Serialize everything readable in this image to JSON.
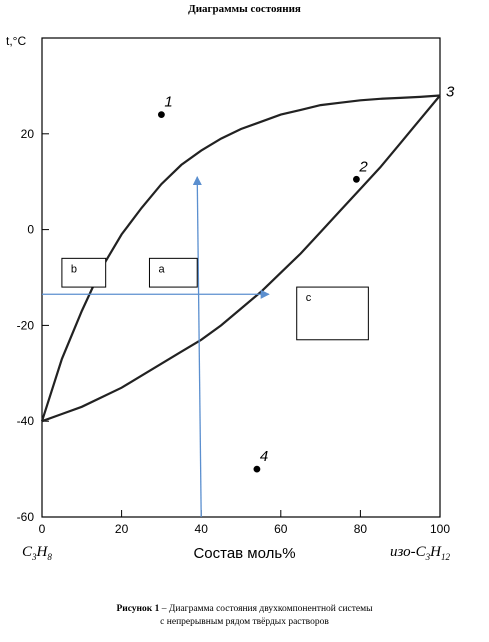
{
  "header": {
    "title": "Диаграммы состояния"
  },
  "chart_data": {
    "type": "line",
    "title": "Диаграммы состояния",
    "ylabel": "t,°C",
    "xlabel": "Состав моль%",
    "xlim": [
      0,
      100
    ],
    "ylim": [
      -60,
      40
    ],
    "x_ticks": [
      0,
      20,
      40,
      60,
      80,
      100
    ],
    "y_ticks": [
      -60,
      -40,
      -20,
      0,
      20
    ],
    "grid": false,
    "x_end_labels": {
      "left": {
        "base": "C",
        "s1": "3",
        "mid": "H",
        "s2": "8"
      },
      "right": {
        "prefix": "изо-",
        "base": "C",
        "s1": "3",
        "mid": "H",
        "s2": "12"
      }
    },
    "series": [
      {
        "x": [
          0,
          5,
          10,
          15,
          20,
          25,
          30,
          35,
          40,
          45,
          50,
          55,
          60,
          65,
          70,
          75,
          80,
          85,
          90,
          95,
          100
        ],
        "y": [
          -40,
          -27,
          -17,
          -8,
          -1,
          4.5,
          9.5,
          13.5,
          16.5,
          19,
          21,
          22.5,
          24,
          25,
          26,
          26.5,
          27,
          27.3,
          27.5,
          27.7,
          28
        ]
      },
      {
        "x": [
          0,
          5,
          10,
          15,
          20,
          25,
          30,
          35,
          40,
          45,
          50,
          55,
          60,
          65,
          70,
          75,
          80,
          85,
          90,
          95,
          100
        ],
        "y": [
          -40,
          -38.5,
          -37,
          -35,
          -33,
          -30.5,
          -28,
          -25.5,
          -23,
          -20,
          -16.5,
          -13,
          -9,
          -5,
          -0.5,
          4,
          8.5,
          13,
          18,
          23,
          28
        ]
      }
    ],
    "points": [
      {
        "label": "1",
        "x": 30,
        "y": 24
      },
      {
        "label": "2",
        "x": 79,
        "y": 10.5
      },
      {
        "label": "3",
        "x": 100,
        "y": 28
      },
      {
        "label": "4",
        "x": 54,
        "y": -50
      }
    ],
    "arrows": [
      {
        "from": [
          40,
          -60
        ],
        "to": [
          39,
          11
        ]
      },
      {
        "from": [
          0,
          -13.5
        ],
        "to": [
          57,
          -13.5
        ]
      }
    ],
    "boxes": [
      {
        "label": "b",
        "x": [
          5,
          16
        ],
        "y": [
          -6,
          -12
        ]
      },
      {
        "label": "a",
        "x": [
          27,
          39
        ],
        "y": [
          -6,
          -12
        ]
      },
      {
        "label": "c",
        "x": [
          64,
          82
        ],
        "y": [
          -12,
          -23
        ]
      }
    ],
    "colors": {
      "curve": "#222222",
      "arrow": "#5b8fcf",
      "axis": "#000000"
    }
  },
  "caption": {
    "bold": "Рисунок 1",
    "line1": " – Диаграмма состояния двухкомпонентной системы",
    "line2": "с непрерывным рядом твёрдых растворов"
  }
}
